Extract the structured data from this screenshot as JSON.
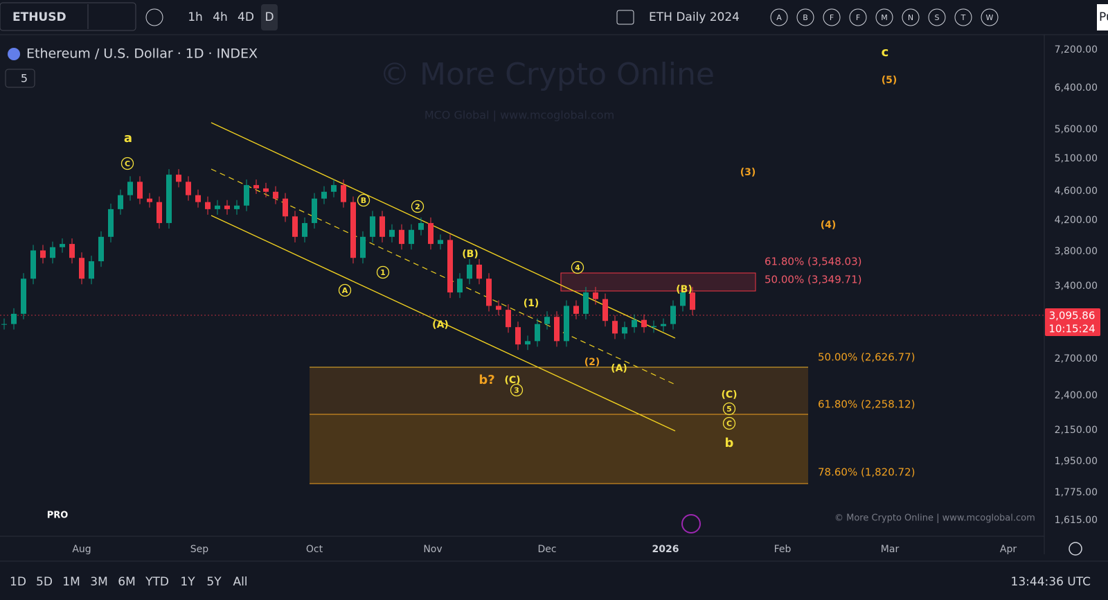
{
  "toolbar": {
    "symbol": "ETHUSD",
    "intervals": [
      "1h",
      "4h",
      "4D",
      "D"
    ],
    "layout_name": "ETH Daily 2024",
    "alerts": [
      "A",
      "B",
      "F",
      "F",
      "M",
      "N",
      "S",
      "T",
      "W"
    ],
    "corner": "Pu"
  },
  "legend": {
    "title": "Ethereum / U.S. Dollar · 1D · INDEX",
    "count": "5"
  },
  "watermark": {
    "title": "© More Crypto Online",
    "subtitle": "MCO Global   |   www.mcoglobal.com"
  },
  "credit": "© More Crypto Online   |   www.mcoglobal.com",
  "logo": "PRO",
  "candles": [
    2960,
    3060,
    3430,
    3760,
    3670,
    3800,
    3840,
    3670,
    3430,
    3630,
    3930,
    4300,
    4500,
    4700,
    4450,
    4400,
    4110,
    4810,
    4700,
    4500,
    4400,
    4300,
    4350,
    4300,
    4350,
    4650,
    4600,
    4550,
    4450,
    4200,
    3930,
    4110,
    4450,
    4550,
    4650,
    4400,
    3670,
    3930,
    4200,
    3930,
    4020,
    3840,
    4020,
    4110,
    3840,
    3890,
    3280,
    3430,
    3590,
    3430,
    3140,
    3100,
    2930,
    2770,
    2800,
    2960,
    3030,
    2800,
    3140,
    3060,
    3280,
    3210,
    2990,
    2870,
    2930,
    3000,
    2930,
    2940,
    2960,
    3140,
    3280,
    3100
  ],
  "price_axis": [
    "7,200.00",
    "6,400.00",
    "5,600.00",
    "5,100.00",
    "4,600.00",
    "4,200.00",
    "3,800.00",
    "3,400.00",
    "2,700.00",
    "2,400.00",
    "2,150.00",
    "1,950.00",
    "1,775.00",
    "1,615.00"
  ],
  "last_price": {
    "price": "3,095.86",
    "countdown": "10:15:24"
  },
  "time_axis": [
    "Aug",
    "Sep",
    "Oct",
    "Nov",
    "Dec",
    "2026",
    "Feb",
    "Mar",
    "Apr"
  ],
  "fib_levels": [
    "61.80% (3,548.03)",
    "50.00% (3,349.71)",
    "50.00% (2,626.77)",
    "61.80% (2,258.12)",
    "78.60% (1,820.72)"
  ],
  "waves": [
    "a",
    "C",
    "B",
    "2",
    "A",
    "1",
    "(B)",
    "(A)",
    "(1)",
    "4",
    "(B)",
    "(2)",
    "(A)",
    "b?",
    "(C)",
    "3",
    "(C)",
    "5",
    "C",
    "b",
    "c",
    "(5)",
    "(3)",
    "(4)"
  ],
  "ranges": [
    "1D",
    "5D",
    "1M",
    "3M",
    "6M",
    "YTD",
    "1Y",
    "5Y",
    "All"
  ],
  "clock": "13:44:36 UTC"
}
